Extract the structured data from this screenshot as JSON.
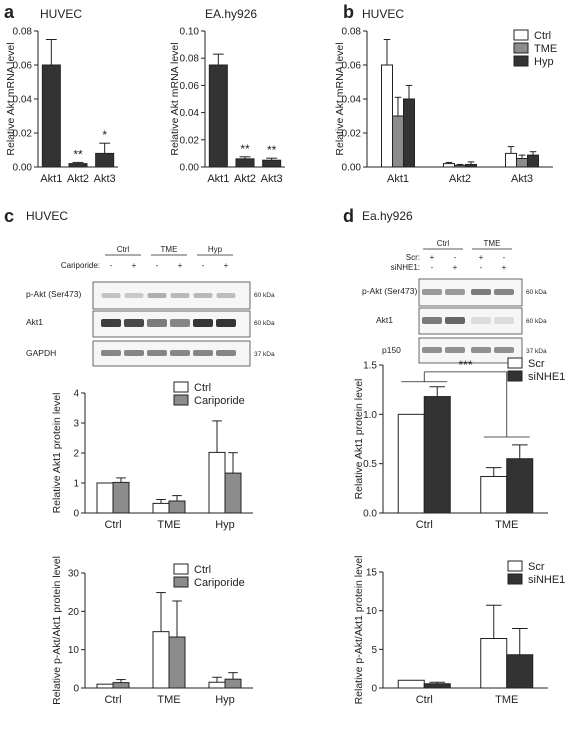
{
  "colors": {
    "white": "#ffffff",
    "gray": "#8c8c8c",
    "dark": "#333333",
    "line": "#222222"
  },
  "panels": {
    "a": {
      "label": "a"
    },
    "b": {
      "label": "b"
    },
    "c": {
      "label": "c",
      "title": "HUVEC"
    },
    "d": {
      "label": "d",
      "title": "Ea.hy926"
    }
  },
  "blot_c": {
    "groups": [
      "Ctrl",
      "TME",
      "Hyp"
    ],
    "treatment_label": "Cariporide:",
    "treatment_signs": [
      "-",
      "+",
      "-",
      "+",
      "-",
      "+"
    ],
    "rows": [
      {
        "label": "p-Akt (Ser473)",
        "kda": "60 kDa"
      },
      {
        "label": "Akt1",
        "kda": "60 kDa"
      },
      {
        "label": "GAPDH",
        "kda": "37 kDa"
      }
    ]
  },
  "blot_d": {
    "groups": [
      "Ctrl",
      "TME"
    ],
    "scr_label": "Scr:",
    "scr_signs": [
      "+",
      "-",
      "+",
      "-"
    ],
    "si_label": "siNHE1:",
    "si_signs": [
      "-",
      "+",
      "-",
      "+"
    ],
    "rows": [
      {
        "label": "p-Akt (Ser473)",
        "kda": "60 kDa"
      },
      {
        "label": "Akt1",
        "kda": "60 kDa"
      },
      {
        "label": "p150",
        "kda": "37 kDa"
      }
    ]
  },
  "chart_data": [
    {
      "id": "a1",
      "type": "bar",
      "title": "HUVEC",
      "ylabel": "Relative Akt mRNA level",
      "categories": [
        "Akt1",
        "Akt2",
        "Akt3"
      ],
      "series": [
        {
          "values": [
            0.06,
            0.002,
            0.008
          ],
          "errors": [
            0.015,
            0.0007,
            0.006
          ],
          "color": "dark"
        }
      ],
      "ylim": [
        0,
        0.08
      ],
      "yticks": [
        "0.00",
        "0.02",
        "0.04",
        "0.06",
        "0.08"
      ],
      "significance": [
        "",
        "**",
        "*"
      ]
    },
    {
      "id": "a2",
      "type": "bar",
      "title": "EA.hy926",
      "ylabel": "Relative Akt mRNA level",
      "categories": [
        "Akt1",
        "Akt2",
        "Akt3"
      ],
      "series": [
        {
          "values": [
            0.075,
            0.006,
            0.005
          ],
          "errors": [
            0.008,
            0.0015,
            0.0015
          ],
          "color": "dark"
        }
      ],
      "ylim": [
        0,
        0.1
      ],
      "yticks": [
        "0.00",
        "0.02",
        "0.04",
        "0.06",
        "0.08",
        "0.10"
      ],
      "significance": [
        "",
        "**",
        "**"
      ]
    },
    {
      "id": "b",
      "type": "bar",
      "title": "HUVEC",
      "ylabel": "Relative Akt mRNA level",
      "categories": [
        "Akt1",
        "Akt2",
        "Akt3"
      ],
      "series": [
        {
          "name": "Ctrl",
          "values": [
            0.06,
            0.002,
            0.008
          ],
          "errors": [
            0.015,
            0.0007,
            0.004
          ],
          "color": "white"
        },
        {
          "name": "TME",
          "values": [
            0.03,
            0.001,
            0.005
          ],
          "errors": [
            0.011,
            0.0005,
            0.002
          ],
          "color": "gray"
        },
        {
          "name": "Hyp",
          "values": [
            0.04,
            0.0015,
            0.007
          ],
          "errors": [
            0.008,
            0.0015,
            0.002
          ],
          "color": "dark"
        }
      ],
      "ylim": [
        0,
        0.08
      ],
      "yticks": [
        "0.00",
        "0.02",
        "0.04",
        "0.06",
        "0.08"
      ],
      "legend": "top-right"
    },
    {
      "id": "c1",
      "type": "bar",
      "ylabel": "Relative Akt1 protein level",
      "categories": [
        "Ctrl",
        "TME",
        "Hyp"
      ],
      "series": [
        {
          "name": "Ctrl",
          "values": [
            1.0,
            0.32,
            2.02
          ],
          "errors": [
            0,
            0.13,
            1.05
          ],
          "color": "white"
        },
        {
          "name": "Cariporide",
          "values": [
            1.02,
            0.4,
            1.33
          ],
          "errors": [
            0.15,
            0.18,
            0.68
          ],
          "color": "gray"
        }
      ],
      "ylim": [
        0,
        4
      ],
      "yticks": [
        "0",
        "1",
        "2",
        "3",
        "4"
      ],
      "legend": "top"
    },
    {
      "id": "c2",
      "type": "bar",
      "ylabel": "Relative p-Akt/Akt1 protein level",
      "categories": [
        "Ctrl",
        "TME",
        "Hyp"
      ],
      "series": [
        {
          "name": "Ctrl",
          "values": [
            1.0,
            14.7,
            1.5
          ],
          "errors": [
            0,
            10.2,
            1.3
          ],
          "color": "white"
        },
        {
          "name": "Cariporide",
          "values": [
            1.4,
            13.3,
            2.3
          ],
          "errors": [
            0.8,
            9.4,
            1.7
          ],
          "color": "gray"
        }
      ],
      "ylim": [
        0,
        30
      ],
      "yticks": [
        "0",
        "10",
        "20",
        "30"
      ],
      "legend": "top"
    },
    {
      "id": "d1",
      "type": "bar",
      "ylabel": "Relative Akt1 protein level",
      "categories": [
        "Ctrl",
        "TME"
      ],
      "series": [
        {
          "name": "Scr",
          "values": [
            1.0,
            0.37
          ],
          "errors": [
            0,
            0.09
          ],
          "color": "white"
        },
        {
          "name": "siNHE1",
          "values": [
            1.18,
            0.55
          ],
          "errors": [
            0.1,
            0.14
          ],
          "color": "dark"
        }
      ],
      "ylim": [
        0,
        1.5
      ],
      "yticks": [
        "0.0",
        "0.5",
        "1.0",
        "1.5"
      ],
      "legend": "top-right",
      "significance_bracket": "***"
    },
    {
      "id": "d2",
      "type": "bar",
      "ylabel": "Relative p-Akt/Akt1 protein level",
      "categories": [
        "Ctrl",
        "TME"
      ],
      "series": [
        {
          "name": "Scr",
          "values": [
            1.0,
            6.4
          ],
          "errors": [
            0,
            4.3
          ],
          "color": "white"
        },
        {
          "name": "siNHE1",
          "values": [
            0.55,
            4.3
          ],
          "errors": [
            0.2,
            3.4
          ],
          "color": "dark"
        }
      ],
      "ylim": [
        0,
        15
      ],
      "yticks": [
        "0",
        "5",
        "10",
        "15"
      ],
      "legend": "top-right"
    }
  ]
}
